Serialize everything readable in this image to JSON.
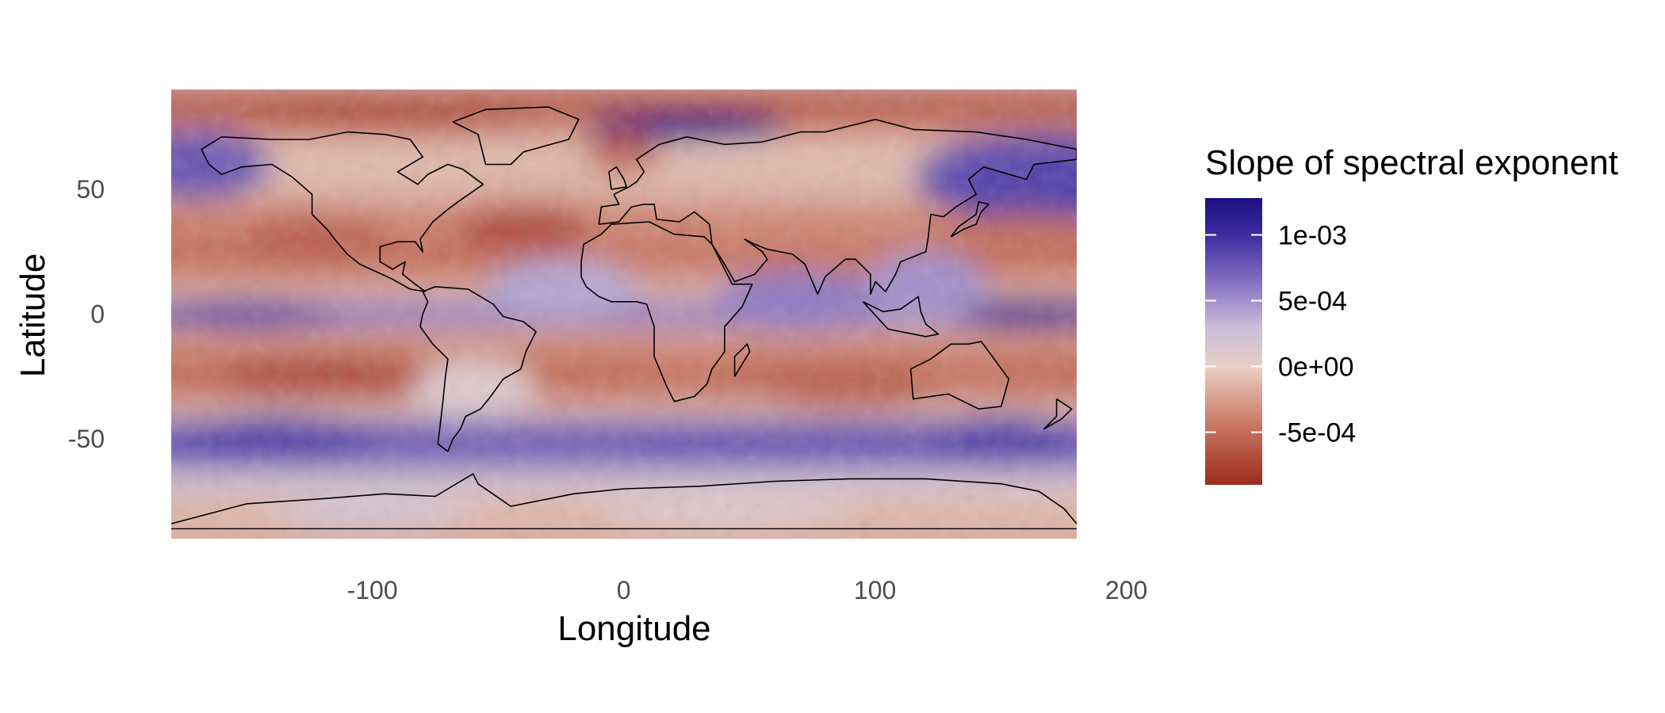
{
  "chart_data": {
    "type": "heatmap",
    "title": "",
    "xlabel": "Longitude",
    "ylabel": "Latitude",
    "xlim": [
      -180,
      200
    ],
    "ylim": [
      -90,
      90
    ],
    "x_ticks": [
      {
        "value": -100,
        "label": "-100"
      },
      {
        "value": 0,
        "label": "0"
      },
      {
        "value": 100,
        "label": "100"
      },
      {
        "value": 200,
        "label": "200"
      }
    ],
    "y_ticks": [
      {
        "value": 50,
        "label": "50"
      },
      {
        "value": 0,
        "label": "0"
      },
      {
        "value": -50,
        "label": "-50"
      }
    ],
    "grid": false,
    "legend": {
      "title": "Slope of spectral exponent",
      "placement": "right",
      "range": [
        -0.0009,
        0.00128
      ],
      "breaks": [
        {
          "value": 0.001,
          "label": "1e-03"
        },
        {
          "value": 0.0005,
          "label": "5e-04"
        },
        {
          "value": 0.0,
          "label": "0e+00"
        },
        {
          "value": -0.0005,
          "label": "-5e-04"
        }
      ]
    },
    "color_scale": [
      "#9b2d1f",
      "#c8735f",
      "#e8cfc3",
      "#c8bcd9",
      "#7e6bbf",
      "#3a2a9e",
      "#1e0f82"
    ],
    "field_features": [
      {
        "kind": "positive-band",
        "lat": 0,
        "lon_range": [
          -180,
          -120
        ],
        "value": 0.00085
      },
      {
        "kind": "positive-band",
        "lat": 0,
        "lon_range": [
          140,
          180
        ],
        "value": 0.0011
      },
      {
        "kind": "positive-band",
        "lat": -50,
        "lon_range": [
          -180,
          180
        ],
        "value": 0.0008
      },
      {
        "kind": "positive-patch",
        "lat": 55,
        "lon": 165,
        "value": 0.0009
      },
      {
        "kind": "positive-patch",
        "lat": 75,
        "lon": 25,
        "value": 0.0012
      },
      {
        "kind": "negative-band",
        "lat": 85,
        "lon_range": [
          -180,
          180
        ],
        "value": -0.0007
      },
      {
        "kind": "negative-band",
        "lat": -25,
        "lon_range": [
          -180,
          180
        ],
        "value": -0.0005
      }
    ]
  }
}
